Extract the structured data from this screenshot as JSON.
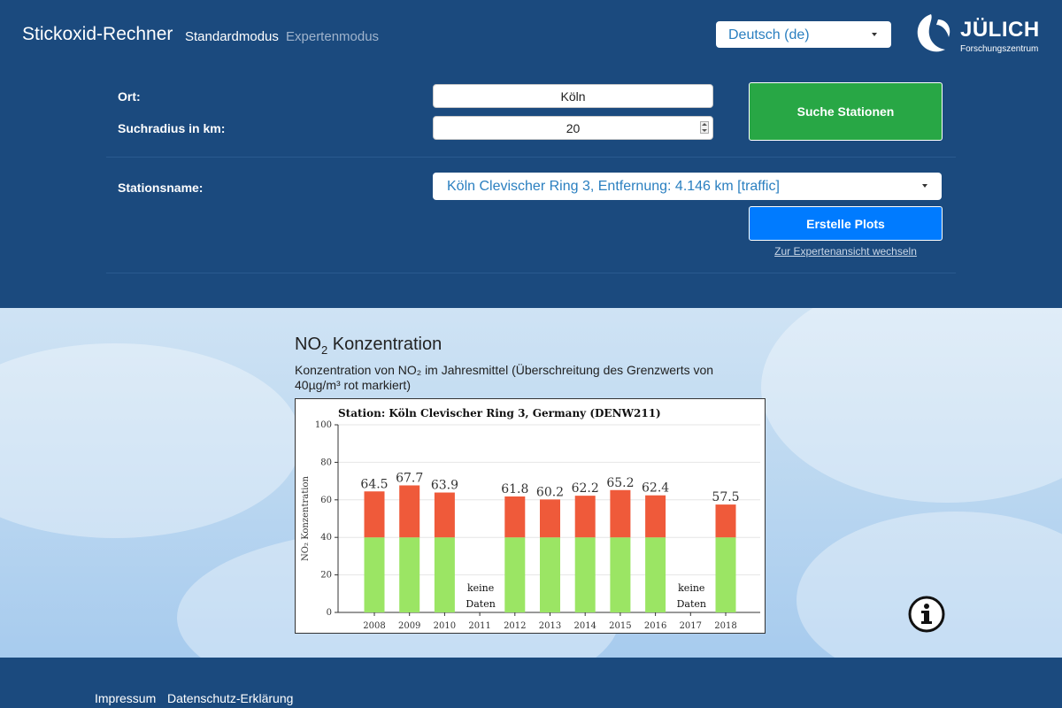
{
  "header": {
    "app_title": "Stickoxid-Rechner",
    "nav": [
      "Standardmodus",
      "Expertenmodus"
    ],
    "language": "Deutsch (de)",
    "logo_text": "JÜLICH",
    "logo_subtext": "Forschungszentrum"
  },
  "form": {
    "ort_label": "Ort:",
    "ort_value": "Köln",
    "radius_label": "Suchradius in km:",
    "radius_value": "20",
    "search_button": "Suche Stationen",
    "station_label": "Stationsname:",
    "station_value": "Köln Clevischer Ring 3, Entfernung: 4.146 km [traffic]",
    "plot_button": "Erstelle Plots",
    "expert_link": "Zur Expertenansicht wechseln"
  },
  "section": {
    "title_main": "NO",
    "title_sub": "2",
    "title_rest": " Konzentration",
    "description": "Konzentration von NO₂ im Jahresmittel (Überschreitung des Grenzwerts von 40µg/m³ rot markiert)"
  },
  "chart_data": {
    "type": "bar",
    "title": "Station: Köln Clevischer Ring 3, Germany (DENW211)",
    "ylabel": "NO₂ Konzentration",
    "categories": [
      "2008",
      "2009",
      "2010",
      "2011",
      "2012",
      "2013",
      "2014",
      "2015",
      "2016",
      "2017",
      "2018"
    ],
    "values": [
      64.5,
      67.7,
      63.9,
      null,
      61.8,
      60.2,
      62.2,
      65.2,
      62.4,
      null,
      57.5
    ],
    "threshold": 40,
    "ylim": [
      0,
      100
    ],
    "yticks": [
      0,
      20,
      40,
      60,
      80,
      100
    ],
    "missing_label": [
      "keine",
      "Daten"
    ],
    "colors": {
      "below": "#9be564",
      "above": "#ef5a3a"
    },
    "grid": "horizontal"
  },
  "footer": {
    "links": [
      "Impressum",
      "Datenschutz-Erklärung"
    ]
  },
  "icons": [
    "chevron-down-icon",
    "info-icon",
    "julich-logo-icon"
  ]
}
